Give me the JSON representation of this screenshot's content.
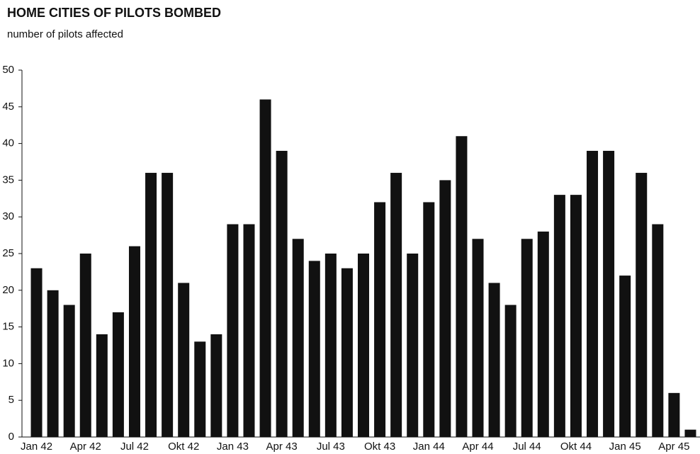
{
  "chart_data": {
    "type": "bar",
    "title": "HOME CITIES OF PILOTS BOMBED",
    "subtitle": "number of pilots affected",
    "categories": [
      "Jan 42",
      null,
      null,
      "Apr 42",
      null,
      null,
      "Jul 42",
      null,
      null,
      "Okt 42",
      null,
      null,
      "Jan 43",
      null,
      null,
      "Apr 43",
      null,
      null,
      "Jul 43",
      null,
      null,
      "Okt 43",
      null,
      null,
      "Jan 44",
      null,
      null,
      "Apr 44",
      null,
      null,
      "Jul 44",
      null,
      null,
      "Okt 44",
      null,
      null,
      "Jan 45",
      null,
      null,
      "Apr 45",
      null
    ],
    "values": [
      23,
      20,
      18,
      25,
      14,
      17,
      26,
      36,
      36,
      21,
      13,
      14,
      29,
      29,
      46,
      39,
      27,
      24,
      25,
      23,
      25,
      32,
      36,
      25,
      32,
      35,
      41,
      27,
      21,
      18,
      27,
      28,
      33,
      33,
      39,
      39,
      22,
      36,
      29,
      6,
      1
    ],
    "color": "#111111",
    "ylim": [
      0,
      50
    ],
    "yticks": [
      0,
      5,
      10,
      15,
      20,
      25,
      30,
      35,
      40,
      45,
      50
    ],
    "grid": false
  }
}
